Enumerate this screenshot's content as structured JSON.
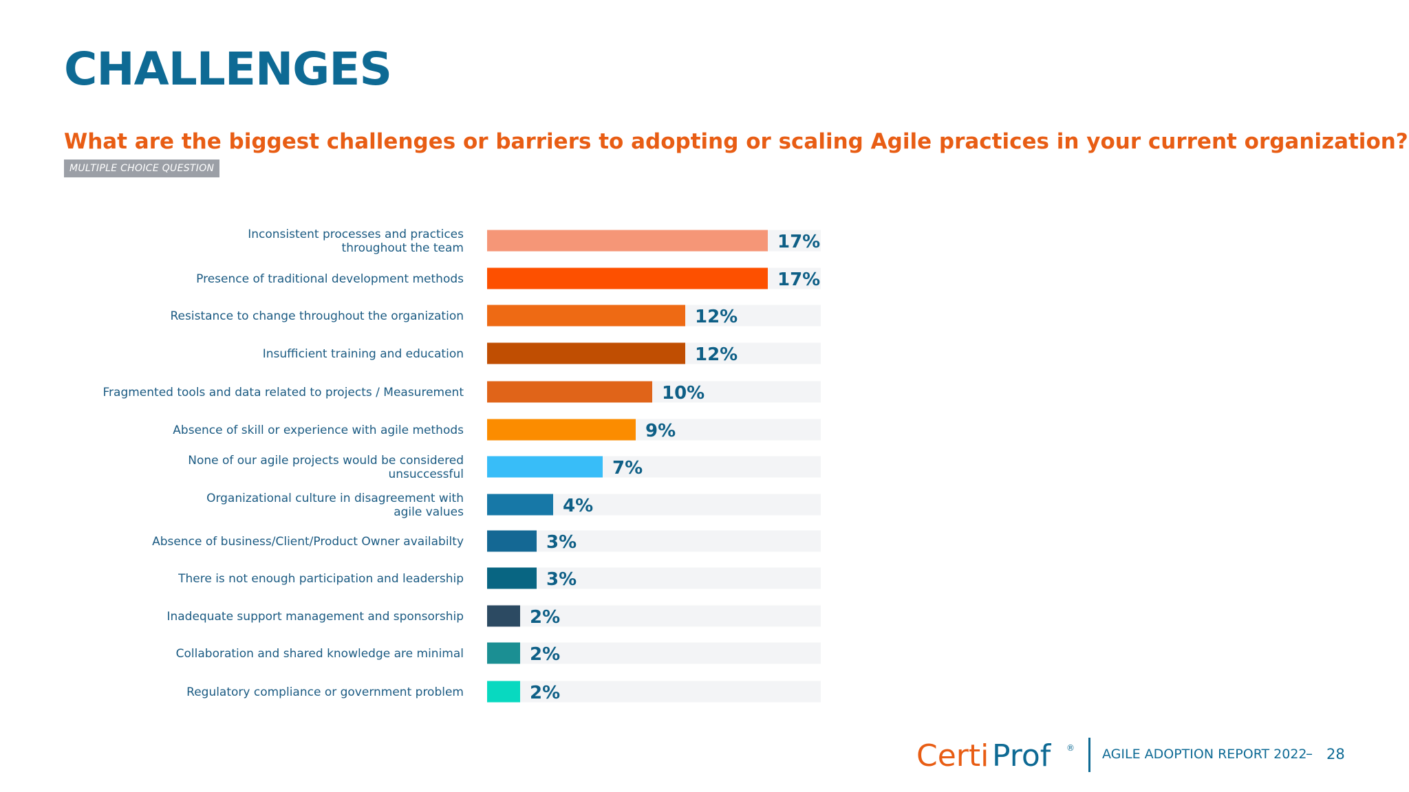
{
  "slide": {
    "title": "CHALLENGES",
    "question": "What are the biggest challenges or barriers to adopting or scaling Agile practices in your current organization?",
    "badge": "MULTIPLE CHOICE QUESTION"
  },
  "footer": {
    "brand_part1": "Certi",
    "brand_part2": "Prof",
    "registered": "®",
    "report": "AGILE ADOPTION REPORT 2022",
    "dash": "–",
    "page": "28"
  },
  "colors": {
    "title": "#0e6a94",
    "question": "#e85d14",
    "label": "#1a5a82",
    "value_label": "#0e5f86",
    "track": "#f3f4f6"
  },
  "chart_data": {
    "type": "bar",
    "orientation": "horizontal",
    "xlim": [
      0,
      20
    ],
    "categories": [
      [
        "Inconsistent processes and practices",
        "throughout the team"
      ],
      [
        "Presence of traditional development methods"
      ],
      [
        "Resistance to change throughout the organization"
      ],
      [
        "Insufficient training and education"
      ],
      [
        "Fragmented tools and data related to projects / Measurement"
      ],
      [
        "Absence of skill or experience with agile methods"
      ],
      [
        "None of our agile projects would be considered",
        "unsuccessful"
      ],
      [
        "Organizational culture in disagreement with",
        "agile values"
      ],
      [
        "Absence of business/Client/Product Owner availabilty"
      ],
      [
        "There is not enough participation and leadership"
      ],
      [
        "Inadequate support management and sponsorship"
      ],
      [
        "Collaboration and shared knowledge are minimal"
      ],
      [
        "Regulatory compliance or government problem"
      ]
    ],
    "values": [
      17,
      17,
      12,
      12,
      10,
      9,
      7,
      4,
      3,
      3,
      2,
      2,
      2
    ],
    "value_labels": [
      "17%",
      "17%",
      "12%",
      "12%",
      "10%",
      "9%",
      "7%",
      "4%",
      "3%",
      "3%",
      "2%",
      "2%",
      "2%"
    ],
    "bar_colors": [
      "#f59677",
      "#fd5000",
      "#ee6a14",
      "#c04e02",
      "#e06419",
      "#fb8c00",
      "#38bdf8",
      "#1778a7",
      "#146894",
      "#086582",
      "#2c4a62",
      "#1b8f93",
      "#08d9c0"
    ]
  }
}
